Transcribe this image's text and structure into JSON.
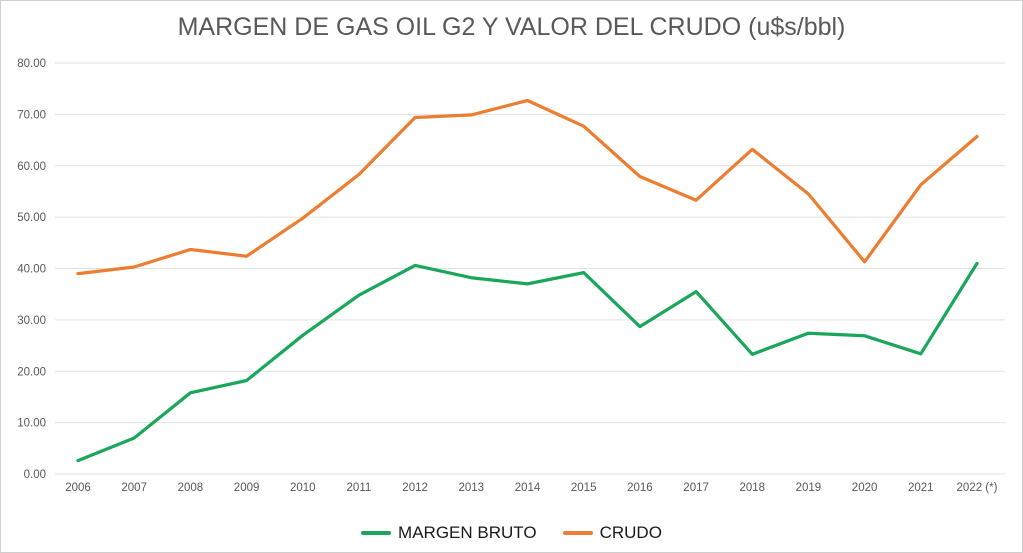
{
  "figure": {
    "title": "MARGEN DE GAS OIL G2 Y VALOR DEL CRUDO (u$s/bbl)"
  },
  "chart_data": {
    "type": "line",
    "title": "MARGEN DE GAS OIL G2 Y VALOR DEL CRUDO (u$s/bbl)",
    "categories": [
      "2006",
      "2007",
      "2008",
      "2009",
      "2010",
      "2011",
      "2012",
      "2013",
      "2014",
      "2015",
      "2016",
      "2017",
      "2018",
      "2019",
      "2020",
      "2021",
      "2022 (*)"
    ],
    "series": [
      {
        "name": "MARGEN BRUTO",
        "color": "#1BA75B",
        "values": [
          2.6,
          7.0,
          15.8,
          18.2,
          27.0,
          34.8,
          40.6,
          38.2,
          37.0,
          39.2,
          28.7,
          35.5,
          23.3,
          27.4,
          26.9,
          23.4,
          41.0
        ]
      },
      {
        "name": "CRUDO",
        "color": "#ED7D31",
        "values": [
          39.0,
          40.3,
          43.7,
          42.4,
          49.8,
          58.3,
          69.4,
          69.9,
          72.7,
          67.7,
          57.9,
          53.3,
          63.2,
          54.5,
          41.3,
          56.3,
          65.7
        ]
      }
    ],
    "ylim": [
      0,
      80
    ],
    "ytick_step": 10,
    "ytick_labels": [
      "0.00",
      "10.00",
      "20.00",
      "30.00",
      "40.00",
      "50.00",
      "60.00",
      "70.00",
      "80.00"
    ],
    "xlabel": "",
    "ylabel": "",
    "grid": "horizontal",
    "legend_position": "bottom"
  },
  "colors": {
    "grid": "#E2E2E2",
    "axis_text": "#595959",
    "title_text": "#595959",
    "legend_text": "#1A1A1A",
    "border": "#CFCFCF",
    "background": "#FFFFFF"
  }
}
